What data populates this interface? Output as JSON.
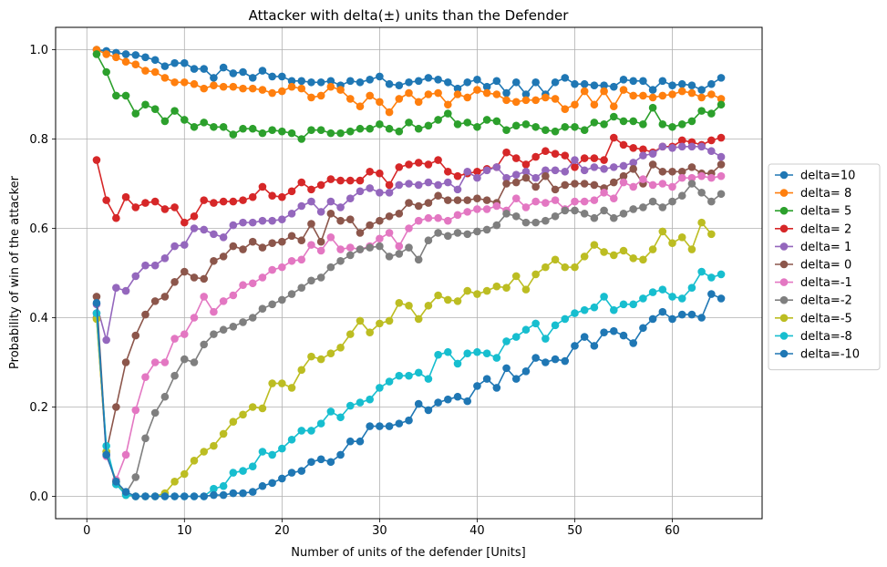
{
  "chart_data": {
    "type": "line",
    "title": "Attacker with delta(±) units than the Defender",
    "xlabel": "Number of units of the defender [Units]",
    "ylabel": "Probability of win of the attacker",
    "xlim": [
      -3.2,
      69.2
    ],
    "ylim": [
      -0.05,
      1.05
    ],
    "xticks": [
      0,
      10,
      20,
      30,
      40,
      50,
      60
    ],
    "xtick_labels": [
      "0",
      "10",
      "20",
      "30",
      "40",
      "50",
      "60"
    ],
    "yticks": [
      0.0,
      0.2,
      0.4,
      0.6,
      0.8,
      1.0
    ],
    "ytick_labels": [
      "0.0",
      "0.2",
      "0.4",
      "0.6",
      "0.8",
      "1.0"
    ],
    "grid": true,
    "legend_position": "center right outside",
    "series": [
      {
        "name": "delta=10",
        "color": "#1f77b4",
        "x_start": 1,
        "values": [
          1.0,
          0.997,
          0.993,
          0.99,
          0.988,
          0.983,
          0.977,
          0.963,
          0.97,
          0.97,
          0.957,
          0.957,
          0.937,
          0.96,
          0.947,
          0.95,
          0.937,
          0.953,
          0.94,
          0.94,
          0.93,
          0.93,
          0.927,
          0.927,
          0.93,
          0.92,
          0.93,
          0.927,
          0.933,
          0.94,
          0.923,
          0.92,
          0.927,
          0.93,
          0.937,
          0.933,
          0.927,
          0.913,
          0.927,
          0.933,
          0.917,
          0.93,
          0.903,
          0.927,
          0.9,
          0.927,
          0.9,
          0.927,
          0.937,
          0.923,
          0.923,
          0.92,
          0.92,
          0.917,
          0.933,
          0.93,
          0.93,
          0.91,
          0.93,
          0.92,
          0.923,
          0.92,
          0.91,
          0.923,
          0.937
        ]
      },
      {
        "name": "delta= 8",
        "color": "#ff7f0e",
        "x_start": 1,
        "values": [
          1.0,
          0.99,
          0.983,
          0.973,
          0.967,
          0.953,
          0.95,
          0.937,
          0.927,
          0.927,
          0.923,
          0.913,
          0.92,
          0.917,
          0.917,
          0.913,
          0.913,
          0.91,
          0.903,
          0.907,
          0.917,
          0.913,
          0.893,
          0.897,
          0.917,
          0.91,
          0.89,
          0.873,
          0.897,
          0.883,
          0.86,
          0.89,
          0.903,
          0.883,
          0.9,
          0.903,
          0.877,
          0.9,
          0.893,
          0.91,
          0.903,
          0.9,
          0.887,
          0.883,
          0.887,
          0.887,
          0.893,
          0.89,
          0.867,
          0.877,
          0.907,
          0.877,
          0.907,
          0.873,
          0.91,
          0.897,
          0.897,
          0.893,
          0.897,
          0.9,
          0.907,
          0.903,
          0.893,
          0.9,
          0.89
        ]
      },
      {
        "name": "delta= 5",
        "color": "#2ca02c",
        "x_start": 1,
        "values": [
          0.99,
          0.95,
          0.897,
          0.897,
          0.857,
          0.877,
          0.867,
          0.84,
          0.863,
          0.843,
          0.827,
          0.837,
          0.827,
          0.827,
          0.81,
          0.823,
          0.823,
          0.813,
          0.82,
          0.817,
          0.813,
          0.8,
          0.82,
          0.82,
          0.813,
          0.813,
          0.817,
          0.823,
          0.823,
          0.833,
          0.823,
          0.817,
          0.837,
          0.823,
          0.83,
          0.843,
          0.857,
          0.833,
          0.837,
          0.827,
          0.843,
          0.84,
          0.82,
          0.83,
          0.833,
          0.827,
          0.82,
          0.817,
          0.827,
          0.827,
          0.82,
          0.837,
          0.833,
          0.85,
          0.84,
          0.84,
          0.833,
          0.87,
          0.833,
          0.827,
          0.833,
          0.84,
          0.863,
          0.857,
          0.877
        ]
      },
      {
        "name": "delta= 2",
        "color": "#d62728",
        "x_start": 1,
        "values": [
          0.753,
          0.663,
          0.623,
          0.67,
          0.647,
          0.657,
          0.66,
          0.643,
          0.647,
          0.613,
          0.627,
          0.663,
          0.657,
          0.66,
          0.66,
          0.663,
          0.67,
          0.693,
          0.673,
          0.67,
          0.683,
          0.703,
          0.687,
          0.697,
          0.71,
          0.707,
          0.707,
          0.707,
          0.727,
          0.723,
          0.697,
          0.737,
          0.743,
          0.747,
          0.743,
          0.753,
          0.727,
          0.717,
          0.723,
          0.727,
          0.733,
          0.737,
          0.77,
          0.757,
          0.743,
          0.76,
          0.773,
          0.767,
          0.763,
          0.737,
          0.757,
          0.757,
          0.753,
          0.803,
          0.787,
          0.78,
          0.777,
          0.77,
          0.783,
          0.783,
          0.797,
          0.793,
          0.787,
          0.797,
          0.803
        ]
      },
      {
        "name": "delta= 1",
        "color": "#9467bd",
        "x_start": 1,
        "values": [
          0.43,
          0.35,
          0.467,
          0.46,
          0.493,
          0.517,
          0.517,
          0.533,
          0.56,
          0.563,
          0.6,
          0.597,
          0.587,
          0.58,
          0.607,
          0.613,
          0.613,
          0.617,
          0.617,
          0.62,
          0.633,
          0.65,
          0.66,
          0.637,
          0.66,
          0.647,
          0.667,
          0.683,
          0.69,
          0.68,
          0.68,
          0.697,
          0.7,
          0.697,
          0.703,
          0.697,
          0.703,
          0.687,
          0.727,
          0.713,
          0.73,
          0.737,
          0.713,
          0.72,
          0.727,
          0.713,
          0.73,
          0.73,
          0.727,
          0.753,
          0.73,
          0.737,
          0.733,
          0.737,
          0.74,
          0.747,
          0.763,
          0.767,
          0.783,
          0.78,
          0.783,
          0.783,
          0.783,
          0.773,
          0.76
        ]
      },
      {
        "name": "delta= 0",
        "color": "#8c564b",
        "x_start": 1,
        "values": [
          0.447,
          0.1,
          0.2,
          0.3,
          0.36,
          0.407,
          0.437,
          0.447,
          0.48,
          0.503,
          0.49,
          0.487,
          0.527,
          0.537,
          0.56,
          0.553,
          0.57,
          0.557,
          0.567,
          0.57,
          0.583,
          0.573,
          0.61,
          0.57,
          0.633,
          0.617,
          0.62,
          0.59,
          0.607,
          0.617,
          0.627,
          0.633,
          0.657,
          0.65,
          0.657,
          0.673,
          0.663,
          0.663,
          0.663,
          0.667,
          0.663,
          0.657,
          0.7,
          0.703,
          0.713,
          0.693,
          0.717,
          0.687,
          0.697,
          0.7,
          0.7,
          0.697,
          0.69,
          0.703,
          0.717,
          0.733,
          0.7,
          0.743,
          0.727,
          0.727,
          0.727,
          0.737,
          0.723,
          0.723,
          0.743
        ]
      },
      {
        "name": "delta=-1",
        "color": "#e377c2",
        "x_start": 1,
        "values": [
          0.41,
          0.09,
          0.037,
          0.093,
          0.193,
          0.267,
          0.3,
          0.3,
          0.353,
          0.363,
          0.4,
          0.447,
          0.413,
          0.437,
          0.45,
          0.473,
          0.477,
          0.49,
          0.507,
          0.513,
          0.527,
          0.53,
          0.563,
          0.55,
          0.58,
          0.553,
          0.557,
          0.553,
          0.56,
          0.577,
          0.59,
          0.56,
          0.6,
          0.617,
          0.623,
          0.623,
          0.617,
          0.63,
          0.637,
          0.643,
          0.643,
          0.65,
          0.64,
          0.667,
          0.647,
          0.66,
          0.657,
          0.663,
          0.643,
          0.66,
          0.66,
          0.663,
          0.68,
          0.667,
          0.703,
          0.693,
          0.71,
          0.697,
          0.7,
          0.693,
          0.713,
          0.713,
          0.717,
          0.713,
          0.717
        ]
      },
      {
        "name": "delta=-2",
        "color": "#7f7f7f",
        "x_start": 1,
        "values": [
          0.4,
          0.1,
          0.027,
          0.007,
          0.043,
          0.13,
          0.187,
          0.223,
          0.27,
          0.307,
          0.3,
          0.34,
          0.363,
          0.373,
          0.38,
          0.39,
          0.4,
          0.42,
          0.43,
          0.44,
          0.453,
          0.467,
          0.483,
          0.49,
          0.513,
          0.527,
          0.54,
          0.553,
          0.557,
          0.56,
          0.537,
          0.543,
          0.557,
          0.53,
          0.573,
          0.59,
          0.583,
          0.59,
          0.587,
          0.593,
          0.597,
          0.607,
          0.633,
          0.627,
          0.613,
          0.613,
          0.617,
          0.627,
          0.64,
          0.64,
          0.633,
          0.623,
          0.64,
          0.623,
          0.633,
          0.643,
          0.647,
          0.66,
          0.647,
          0.66,
          0.673,
          0.7,
          0.68,
          0.66,
          0.677
        ]
      },
      {
        "name": "delta=-5",
        "color": "#bcbd22",
        "x_start": 1,
        "values": [
          0.397,
          0.1,
          0.033,
          0.003,
          0.0,
          0.0,
          0.0,
          0.007,
          0.033,
          0.05,
          0.08,
          0.1,
          0.113,
          0.14,
          0.167,
          0.183,
          0.2,
          0.197,
          0.253,
          0.253,
          0.243,
          0.283,
          0.313,
          0.307,
          0.32,
          0.333,
          0.363,
          0.393,
          0.367,
          0.387,
          0.393,
          0.433,
          0.427,
          0.397,
          0.427,
          0.45,
          0.44,
          0.437,
          0.46,
          0.453,
          0.46,
          0.47,
          0.467,
          0.493,
          0.463,
          0.497,
          0.513,
          0.53,
          0.513,
          0.513,
          0.537,
          0.563,
          0.547,
          0.54,
          0.55,
          0.533,
          0.53,
          0.553,
          0.593,
          0.567,
          0.58,
          0.553,
          0.613,
          0.587
        ]
      },
      {
        "name": "delta=-8",
        "color": "#17becf",
        "x_start": 1,
        "values": [
          0.41,
          0.113,
          0.027,
          0.003,
          0.0,
          0.0,
          0.0,
          0.0,
          0.0,
          0.0,
          0.0,
          0.0,
          0.017,
          0.023,
          0.053,
          0.057,
          0.067,
          0.1,
          0.093,
          0.107,
          0.127,
          0.147,
          0.147,
          0.163,
          0.19,
          0.177,
          0.203,
          0.21,
          0.217,
          0.243,
          0.257,
          0.27,
          0.27,
          0.277,
          0.263,
          0.317,
          0.323,
          0.297,
          0.32,
          0.323,
          0.32,
          0.31,
          0.347,
          0.357,
          0.373,
          0.387,
          0.353,
          0.383,
          0.397,
          0.41,
          0.417,
          0.423,
          0.447,
          0.417,
          0.43,
          0.43,
          0.443,
          0.457,
          0.463,
          0.447,
          0.443,
          0.467,
          0.503,
          0.49,
          0.497
        ]
      },
      {
        "name": "delta=-10",
        "color": "#1f77b4",
        "x_start": 1,
        "values": [
          0.433,
          0.093,
          0.033,
          0.01,
          0.0,
          0.0,
          0.0,
          0.0,
          0.0,
          0.0,
          0.0,
          0.0,
          0.003,
          0.003,
          0.007,
          0.007,
          0.01,
          0.023,
          0.03,
          0.04,
          0.053,
          0.057,
          0.077,
          0.083,
          0.077,
          0.093,
          0.123,
          0.123,
          0.157,
          0.157,
          0.157,
          0.163,
          0.17,
          0.207,
          0.193,
          0.21,
          0.217,
          0.223,
          0.213,
          0.247,
          0.263,
          0.243,
          0.287,
          0.263,
          0.28,
          0.31,
          0.3,
          0.307,
          0.303,
          0.337,
          0.357,
          0.337,
          0.367,
          0.37,
          0.36,
          0.343,
          0.377,
          0.397,
          0.413,
          0.397,
          0.407,
          0.407,
          0.4,
          0.453,
          0.443
        ]
      }
    ]
  }
}
